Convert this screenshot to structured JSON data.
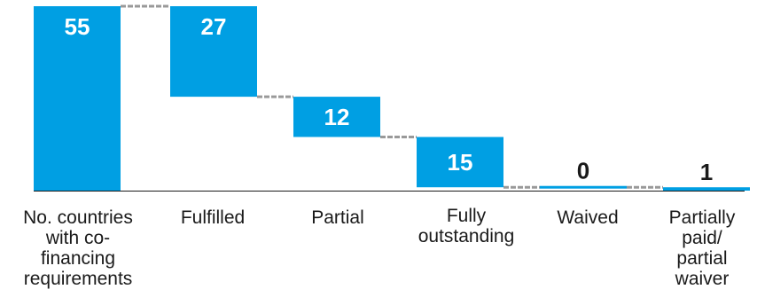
{
  "chart_data": {
    "type": "bar",
    "subtype": "waterfall",
    "title": "",
    "xlabel": "",
    "ylabel": "",
    "ylim": [
      0,
      55
    ],
    "grid": false,
    "legend": "none",
    "colors": {
      "bar": "#009fe3",
      "connector": "#999999",
      "value_label_on_bar": "#ffffff",
      "value_label_off_bar": "#1a1a1a",
      "axis": "#1a1a1a"
    },
    "categories": [
      "No. countries with co-financing requirements",
      "Fulfilled",
      "Partial",
      "Fully outstanding",
      "Waived",
      "Partially paid/ partial waiver"
    ],
    "category_label_lines": [
      [
        "No. countries",
        "with co-",
        "financing",
        "requirements"
      ],
      [
        "Fulfilled"
      ],
      [
        "Partial"
      ],
      [
        "Fully",
        "outstanding"
      ],
      [
        "Waived"
      ],
      [
        "Partially",
        "paid/",
        "partial",
        "waiver"
      ]
    ],
    "values": [
      55,
      27,
      12,
      15,
      0,
      1
    ],
    "bar_ranges": [
      [
        0,
        55
      ],
      [
        28,
        55
      ],
      [
        16,
        28
      ],
      [
        1,
        16
      ],
      [
        1,
        1
      ],
      [
        0,
        1
      ]
    ],
    "value_labels": [
      "55",
      "27",
      "12",
      "15",
      "0",
      "1"
    ]
  }
}
